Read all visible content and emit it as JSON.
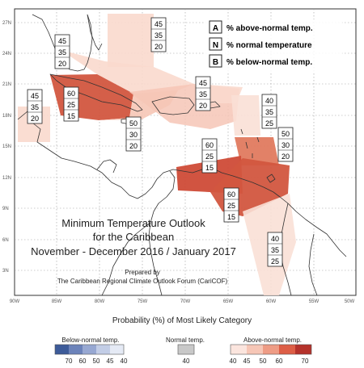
{
  "map": {
    "title_lines": [
      "Minimum Temperature Outlook",
      "for the Caribbean",
      "November - December 2016 / January 2017"
    ],
    "prepared_lines": [
      "Prepared by",
      "The Caribbean Regional Climate Outlook Forum (CariCOF)"
    ],
    "lat_labels": [
      "27N",
      "24N",
      "21N",
      "18N",
      "15N",
      "12N",
      "9N",
      "6N",
      "3N"
    ],
    "lon_labels": [
      "90W",
      "85W",
      "80W",
      "75W",
      "70W",
      "65W",
      "60W",
      "55W",
      "50W"
    ],
    "key": [
      {
        "letter": "A",
        "text": "% above-normal temp."
      },
      {
        "letter": "N",
        "text": "% normal temperature"
      },
      {
        "letter": "B",
        "text": "% below-normal temp."
      }
    ],
    "boxes": [
      {
        "id": "bahamas-north",
        "values": [
          "45",
          "35",
          "20"
        ]
      },
      {
        "id": "bahamas-west",
        "values": [
          "45",
          "35",
          "20"
        ]
      },
      {
        "id": "belize",
        "values": [
          "45",
          "35",
          "20"
        ]
      },
      {
        "id": "cuba",
        "values": [
          "60",
          "25",
          "15"
        ]
      },
      {
        "id": "jamaica",
        "values": [
          "50",
          "30",
          "20"
        ]
      },
      {
        "id": "hispaniola",
        "values": [
          "45",
          "35",
          "20"
        ]
      },
      {
        "id": "leeward",
        "values": [
          "40",
          "35",
          "25"
        ]
      },
      {
        "id": "windward",
        "values": [
          "50",
          "30",
          "20"
        ]
      },
      {
        "id": "abc-islands",
        "values": [
          "60",
          "25",
          "15"
        ]
      },
      {
        "id": "trinidad",
        "values": [
          "60",
          "25",
          "15"
        ]
      },
      {
        "id": "guianas",
        "values": [
          "40",
          "35",
          "25"
        ]
      }
    ]
  },
  "legend": {
    "title": "Probability (%) of Most Likely Category",
    "below": {
      "label": "Below-normal temp.",
      "ticks": [
        "70",
        "60",
        "50",
        "45",
        "40"
      ],
      "colors": [
        "#3d5b99",
        "#6c83ba",
        "#97a8d2",
        "#c2cde6",
        "#e5eaf5"
      ]
    },
    "normal": {
      "label": "Normal temp.",
      "ticks": [
        "40"
      ],
      "colors": [
        "#c8c8c8"
      ]
    },
    "above": {
      "label": "Above-normal temp.",
      "ticks": [
        "40",
        "45",
        "50",
        "60",
        "70"
      ],
      "colors": [
        "#fbe5de",
        "#f6c6b6",
        "#ee9c85",
        "#dd5e46",
        "#b4322b"
      ]
    }
  }
}
